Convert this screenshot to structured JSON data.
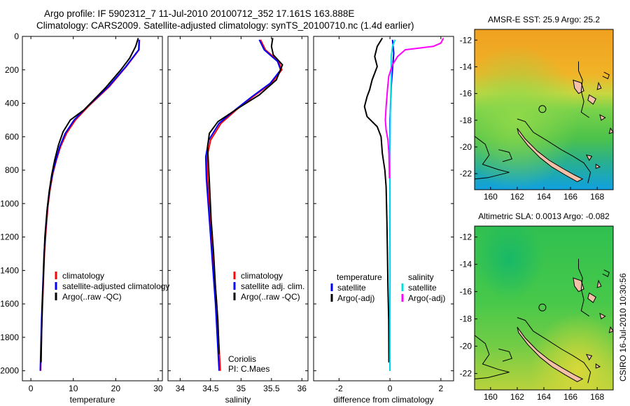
{
  "header": {
    "line1": "Argo profile: IF 5902312_7 11-Jul-2010 20100712_352 17.161S 163.888E",
    "line2": "Climatology: CARS2009. Satellite-adjusted climatology: synTS_20100710.nc (1.4d earlier)"
  },
  "colors": {
    "clim": "#ff0000",
    "sat": "#0000ff",
    "argo": "#000000",
    "sal_sat": "#00e0e0",
    "sal_argo": "#ff00ff"
  },
  "chart_data": [
    {
      "type": "line",
      "id": "temp",
      "xlabel": "temperature",
      "ylabel": "",
      "xlim": [
        -2,
        31
      ],
      "ylim": [
        2060,
        0
      ],
      "y_reversed": true,
      "xticks": [
        0,
        10,
        20,
        30
      ],
      "yticks": [
        0,
        200,
        400,
        600,
        800,
        1000,
        1200,
        1400,
        1600,
        1800,
        2000
      ],
      "legend": [
        "climatology",
        "satellite-adjusted climatology",
        "Argo(..raw -QC)"
      ],
      "series": [
        {
          "name": "climatology",
          "color": "#ff0000",
          "points": [
            [
              25.6,
              20
            ],
            [
              25.5,
              80
            ],
            [
              22.5,
              180
            ],
            [
              18.5,
              300
            ],
            [
              13.5,
              420
            ],
            [
              10.5,
              500
            ],
            [
              8.4,
              580
            ],
            [
              7,
              660
            ],
            [
              6,
              740
            ],
            [
              5.2,
              820
            ],
            [
              4.5,
              920
            ],
            [
              4,
              1020
            ],
            [
              3.6,
              1150
            ],
            [
              3.2,
              1300
            ],
            [
              2.9,
              1500
            ],
            [
              2.6,
              1700
            ],
            [
              2.4,
              1900
            ],
            [
              2.3,
              2000
            ]
          ]
        },
        {
          "name": "satellite-adjusted climatology",
          "color": "#0000ff",
          "points": [
            [
              25.5,
              20
            ],
            [
              25.4,
              80
            ],
            [
              22.4,
              180
            ],
            [
              18.3,
              300
            ],
            [
              13.3,
              420
            ],
            [
              10.2,
              500
            ],
            [
              8.1,
              580
            ],
            [
              6.8,
              660
            ],
            [
              5.9,
              740
            ],
            [
              5.1,
              820
            ],
            [
              4.4,
              920
            ],
            [
              3.9,
              1020
            ],
            [
              3.5,
              1150
            ],
            [
              3.1,
              1300
            ],
            [
              2.8,
              1500
            ],
            [
              2.5,
              1700
            ],
            [
              2.3,
              1900
            ],
            [
              2.2,
              2000
            ]
          ]
        },
        {
          "name": "Argo(..raw -QC)",
          "color": "#000000",
          "points": [
            [
              25.3,
              10
            ],
            [
              24.7,
              60
            ],
            [
              23.3,
              130
            ],
            [
              21.2,
              200
            ],
            [
              17.5,
              310
            ],
            [
              12.5,
              440
            ],
            [
              9.3,
              500
            ],
            [
              7.6,
              570
            ],
            [
              6.5,
              650
            ],
            [
              5.6,
              740
            ],
            [
              4.9,
              830
            ],
            [
              4.3,
              930
            ],
            [
              3.8,
              1040
            ],
            [
              3.3,
              1200
            ],
            [
              3,
              1400
            ],
            [
              2.7,
              1600
            ],
            [
              2.5,
              1800
            ],
            [
              2.4,
              1950
            ]
          ]
        }
      ]
    },
    {
      "type": "line",
      "id": "sal",
      "xlabel": "salinity",
      "xlim": [
        33.8,
        36.1
      ],
      "ylim": [
        2060,
        0
      ],
      "y_reversed": true,
      "xticks": [
        34,
        34.5,
        35,
        35.5,
        36
      ],
      "legend": [
        "climatology",
        "satellite adj. clim.",
        "Argo(..raw -QC)"
      ],
      "annotation": [
        "Coriolis",
        "PI: C.Maes"
      ],
      "series": [
        {
          "name": "climatology",
          "color": "#ff0000",
          "points": [
            [
              35.32,
              20
            ],
            [
              35.4,
              80
            ],
            [
              35.62,
              150
            ],
            [
              35.67,
              200
            ],
            [
              35.5,
              280
            ],
            [
              35.2,
              360
            ],
            [
              34.92,
              440
            ],
            [
              34.67,
              520
            ],
            [
              34.5,
              620
            ],
            [
              34.44,
              720
            ],
            [
              34.45,
              850
            ],
            [
              34.48,
              1000
            ],
            [
              34.52,
              1200
            ],
            [
              34.56,
              1400
            ],
            [
              34.6,
              1600
            ],
            [
              34.63,
              1800
            ],
            [
              34.66,
              2000
            ]
          ]
        },
        {
          "name": "satellite adj. clim.",
          "color": "#0000ff",
          "points": [
            [
              35.3,
              20
            ],
            [
              35.38,
              80
            ],
            [
              35.6,
              150
            ],
            [
              35.65,
              200
            ],
            [
              35.48,
              280
            ],
            [
              35.18,
              360
            ],
            [
              34.9,
              440
            ],
            [
              34.64,
              520
            ],
            [
              34.47,
              620
            ],
            [
              34.42,
              720
            ],
            [
              34.43,
              850
            ],
            [
              34.46,
              1000
            ],
            [
              34.5,
              1200
            ],
            [
              34.54,
              1400
            ],
            [
              34.58,
              1600
            ],
            [
              34.61,
              1800
            ],
            [
              34.64,
              2000
            ]
          ]
        },
        {
          "name": "Argo(..raw -QC)",
          "color": "#000000",
          "points": [
            [
              35.52,
              10
            ],
            [
              35.5,
              60
            ],
            [
              35.53,
              110
            ],
            [
              35.68,
              170
            ],
            [
              35.58,
              260
            ],
            [
              35.3,
              350
            ],
            [
              34.95,
              430
            ],
            [
              34.62,
              510
            ],
            [
              34.48,
              580
            ],
            [
              34.45,
              660
            ],
            [
              34.47,
              800
            ],
            [
              34.49,
              950
            ],
            [
              34.51,
              1100
            ],
            [
              34.55,
              1300
            ],
            [
              34.58,
              1500
            ],
            [
              34.62,
              1700
            ],
            [
              34.64,
              1900
            ]
          ]
        }
      ]
    },
    {
      "type": "line",
      "id": "diff",
      "xlabel": "difference from climatology",
      "xlim": [
        -3,
        2.5
      ],
      "ylim": [
        2060,
        0
      ],
      "y_reversed": true,
      "xticks": [
        -2,
        0,
        2
      ],
      "legend_headers": [
        "temperature",
        "salinity"
      ],
      "legend": [
        "satellite",
        "Argo(-adj)",
        "satellite",
        "Argo(-adj)"
      ],
      "series": [
        {
          "name": "temperature satellite",
          "color": "#0000ff",
          "points": [
            [
              0.1,
              20
            ],
            [
              0.15,
              100
            ],
            [
              0.1,
              200
            ],
            [
              0.05,
              300
            ],
            [
              0,
              500
            ],
            [
              0,
              800
            ],
            [
              0,
              1200
            ],
            [
              0,
              1600
            ],
            [
              0,
              2000
            ]
          ]
        },
        {
          "name": "temperature Argo(-adj)",
          "color": "#000000",
          "points": [
            [
              -0.3,
              10
            ],
            [
              -0.5,
              60
            ],
            [
              -0.6,
              120
            ],
            [
              -0.5,
              180
            ],
            [
              -0.6,
              220
            ],
            [
              -0.7,
              260
            ],
            [
              -0.8,
              320
            ],
            [
              -0.9,
              360
            ],
            [
              -1,
              420
            ],
            [
              -0.9,
              480
            ],
            [
              -0.5,
              540
            ],
            [
              -0.35,
              600
            ],
            [
              -0.3,
              700
            ],
            [
              -0.2,
              800
            ],
            [
              -0.15,
              900
            ],
            [
              -0.12,
              1100
            ],
            [
              -0.1,
              1300
            ],
            [
              -0.08,
              1500
            ],
            [
              -0.05,
              1700
            ],
            [
              -0.04,
              1950
            ]
          ]
        },
        {
          "name": "salinity satellite",
          "color": "#00e0e0",
          "points": [
            [
              0.2,
              20
            ],
            [
              0.1,
              60
            ],
            [
              0.05,
              120
            ],
            [
              0.05,
              250
            ],
            [
              0.02,
              400
            ],
            [
              0,
              700
            ],
            [
              0,
              1100
            ],
            [
              0,
              1500
            ],
            [
              0,
              2000
            ]
          ]
        },
        {
          "name": "salinity Argo(-adj)",
          "color": "#ff00ff",
          "points": [
            [
              2.1,
              10
            ],
            [
              2,
              40
            ],
            [
              1.7,
              60
            ],
            [
              0.6,
              80
            ],
            [
              0.3,
              120
            ],
            [
              0.1,
              170
            ],
            [
              -0.05,
              240
            ],
            [
              -0.1,
              320
            ],
            [
              -0.15,
              420
            ],
            [
              -0.18,
              500
            ],
            [
              -0.15,
              560
            ],
            [
              -0.08,
              620
            ],
            [
              -0.04,
              700
            ],
            [
              -0.02,
              850
            ]
          ]
        }
      ]
    },
    {
      "type": "heatmap",
      "id": "sst",
      "title": "AMSR-E SST: 25.9 Argo: 25.2",
      "xlim": [
        158.8,
        169.2
      ],
      "ylim": [
        -23.2,
        -11.2
      ],
      "xticks": [
        160,
        162,
        164,
        166,
        168
      ],
      "yticks": [
        -12,
        -14,
        -16,
        -18,
        -20,
        -22
      ],
      "xticklabels": [
        "160",
        "162",
        "164",
        "166",
        "168"
      ],
      "yticklabels": [
        "-12",
        "-14",
        "-16",
        "-18",
        "-20",
        "-22"
      ],
      "argo_position": [
        163.888,
        -17.161
      ]
    },
    {
      "type": "heatmap",
      "id": "sla",
      "title": "Altimetric SLA: 0.0013 Argo: -0.082",
      "xlim": [
        158.8,
        169.2
      ],
      "ylim": [
        -23.2,
        -11.2
      ],
      "xticks": [
        160,
        162,
        164,
        166,
        168
      ],
      "yticks": [
        -12,
        -14,
        -16,
        -18,
        -20,
        -22
      ],
      "xticklabels": [
        "160",
        "162",
        "164",
        "166",
        "168"
      ],
      "yticklabels": [
        "-12",
        "-14",
        "-16",
        "-18",
        "-20",
        "-22"
      ],
      "argo_position": [
        163.888,
        -17.161
      ]
    }
  ],
  "footer": {
    "stamp": "CSIRO 16-Jul-2010 10:30:56"
  }
}
